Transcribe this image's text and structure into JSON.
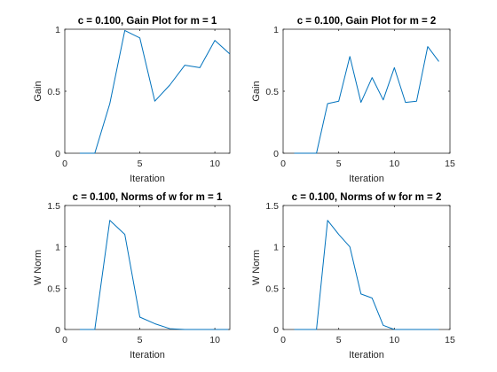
{
  "chart_data": [
    {
      "type": "line",
      "title": "c = 0.100, Gain Plot for m = 1",
      "xlabel": "Iteration",
      "ylabel": "Gain",
      "xlim": [
        0,
        11
      ],
      "ylim": [
        0,
        1
      ],
      "xticks": [
        0,
        5,
        10
      ],
      "yticks": [
        0,
        0.5,
        1
      ],
      "series": [
        {
          "x": [
            1,
            2,
            3,
            4,
            5,
            6,
            7,
            8,
            9,
            10,
            11
          ],
          "y": [
            0,
            0,
            0.4,
            0.99,
            0.93,
            0.42,
            0.55,
            0.71,
            0.69,
            0.91,
            0.8
          ],
          "color": "#0072bd"
        }
      ]
    },
    {
      "type": "line",
      "title": "c = 0.100, Gain Plot for m = 2",
      "xlabel": "Iteration",
      "ylabel": "Gain",
      "xlim": [
        0,
        15
      ],
      "ylim": [
        0,
        1
      ],
      "xticks": [
        0,
        5,
        10,
        15
      ],
      "yticks": [
        0,
        0.5,
        1
      ],
      "series": [
        {
          "x": [
            1,
            2,
            3,
            4,
            5,
            6,
            7,
            8,
            9,
            10,
            11,
            12,
            13,
            14
          ],
          "y": [
            0,
            0,
            0,
            0.4,
            0.42,
            0.78,
            0.41,
            0.61,
            0.43,
            0.69,
            0.41,
            0.42,
            0.86,
            0.74
          ],
          "color": "#0072bd"
        }
      ]
    },
    {
      "type": "line",
      "title": "c = 0.100, Norms of w for m = 1",
      "xlabel": "Iteration",
      "ylabel": "W Norm",
      "xlim": [
        0,
        11
      ],
      "ylim": [
        0,
        1.5
      ],
      "xticks": [
        0,
        5,
        10
      ],
      "yticks": [
        0,
        0.5,
        1,
        1.5
      ],
      "series": [
        {
          "x": [
            1,
            2,
            3,
            4,
            5,
            6,
            7,
            8,
            9,
            10,
            11
          ],
          "y": [
            0,
            0,
            1.32,
            1.15,
            0.15,
            0.07,
            0.01,
            0,
            0,
            0,
            0
          ],
          "color": "#0072bd"
        }
      ]
    },
    {
      "type": "line",
      "title": "c = 0.100, Norms of w for m = 2",
      "xlabel": "Iteration",
      "ylabel": "W Norm",
      "xlim": [
        0,
        15
      ],
      "ylim": [
        0,
        1.5
      ],
      "xticks": [
        0,
        5,
        10,
        15
      ],
      "yticks": [
        0,
        0.5,
        1,
        1.5
      ],
      "series": [
        {
          "x": [
            1,
            2,
            3,
            4,
            5,
            6,
            7,
            8,
            9,
            10,
            11,
            12,
            13,
            14
          ],
          "y": [
            0,
            0,
            0,
            1.32,
            1.15,
            1.0,
            0.43,
            0.38,
            0.05,
            0,
            0,
            0,
            0,
            0
          ],
          "color": "#0072bd"
        }
      ]
    }
  ]
}
